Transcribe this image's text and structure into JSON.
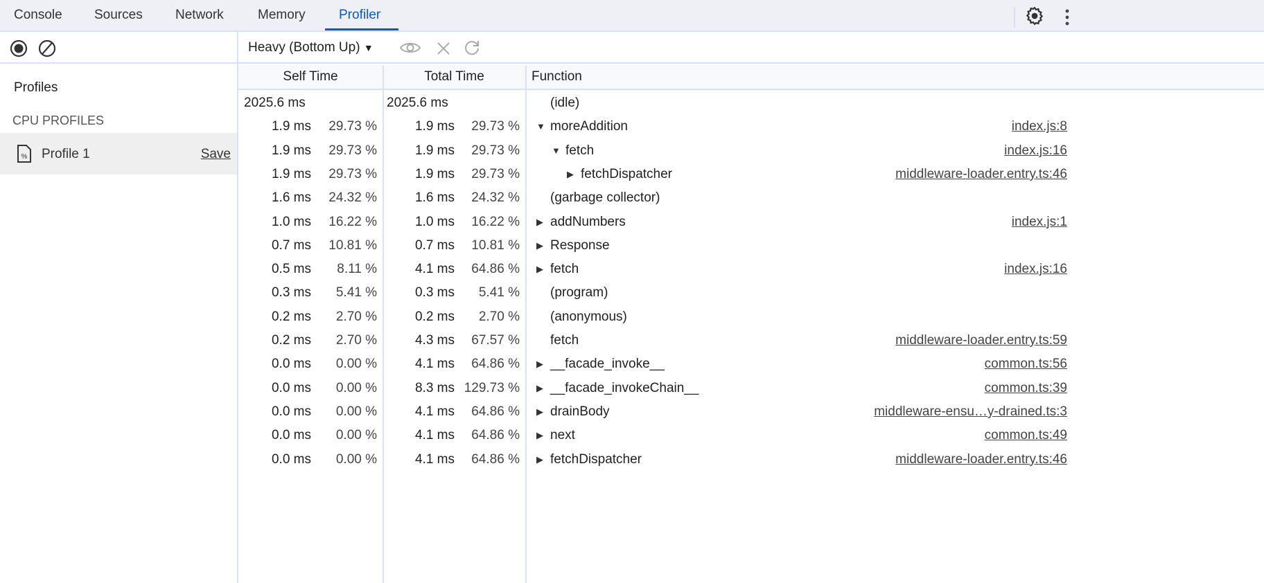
{
  "tabs": [
    {
      "label": "Console"
    },
    {
      "label": "Sources"
    },
    {
      "label": "Network"
    },
    {
      "label": "Memory"
    },
    {
      "label": "Profiler",
      "active": true
    }
  ],
  "accent": "#0b57d0",
  "toolbar": {
    "view_select": "Heavy (Bottom Up)",
    "icons": [
      "record-icon",
      "clear-icon",
      "focus-eye-icon",
      "exclude-x-icon",
      "restore-icon"
    ]
  },
  "sidebar": {
    "title": "Profiles",
    "section": "CPU PROFILES",
    "profile": {
      "label": "Profile 1",
      "save": "Save"
    }
  },
  "columns": {
    "self": "Self Time",
    "total": "Total Time",
    "function": "Function"
  },
  "rows": [
    {
      "self": "2025.6 ms",
      "self_pct": "",
      "total": "2025.6 ms",
      "total_pct": "",
      "name": "(idle)",
      "depth": 0,
      "arrow": "none",
      "url": ""
    },
    {
      "self": "1.9 ms",
      "self_pct": "29.73 %",
      "total": "1.9 ms",
      "total_pct": "29.73 %",
      "name": "moreAddition",
      "depth": 0,
      "arrow": "down",
      "url": "index.js:8"
    },
    {
      "self": "1.9 ms",
      "self_pct": "29.73 %",
      "total": "1.9 ms",
      "total_pct": "29.73 %",
      "name": "fetch",
      "depth": 1,
      "arrow": "down",
      "url": "index.js:16"
    },
    {
      "self": "1.9 ms",
      "self_pct": "29.73 %",
      "total": "1.9 ms",
      "total_pct": "29.73 %",
      "name": "fetchDispatcher",
      "depth": 2,
      "arrow": "right",
      "url": "middleware-loader.entry.ts:46"
    },
    {
      "self": "1.6 ms",
      "self_pct": "24.32 %",
      "total": "1.6 ms",
      "total_pct": "24.32 %",
      "name": "(garbage collector)",
      "depth": 0,
      "arrow": "none",
      "url": ""
    },
    {
      "self": "1.0 ms",
      "self_pct": "16.22 %",
      "total": "1.0 ms",
      "total_pct": "16.22 %",
      "name": "addNumbers",
      "depth": 0,
      "arrow": "right",
      "url": "index.js:1"
    },
    {
      "self": "0.7 ms",
      "self_pct": "10.81 %",
      "total": "0.7 ms",
      "total_pct": "10.81 %",
      "name": "Response",
      "depth": 0,
      "arrow": "right",
      "url": ""
    },
    {
      "self": "0.5 ms",
      "self_pct": "8.11 %",
      "total": "4.1 ms",
      "total_pct": "64.86 %",
      "name": "fetch",
      "depth": 0,
      "arrow": "right",
      "url": "index.js:16"
    },
    {
      "self": "0.3 ms",
      "self_pct": "5.41 %",
      "total": "0.3 ms",
      "total_pct": "5.41 %",
      "name": "(program)",
      "depth": 0,
      "arrow": "none",
      "url": ""
    },
    {
      "self": "0.2 ms",
      "self_pct": "2.70 %",
      "total": "0.2 ms",
      "total_pct": "2.70 %",
      "name": "(anonymous)",
      "depth": 0,
      "arrow": "none",
      "url": ""
    },
    {
      "self": "0.2 ms",
      "self_pct": "2.70 %",
      "total": "4.3 ms",
      "total_pct": "67.57 %",
      "name": "fetch",
      "depth": 0,
      "arrow": "none",
      "url": "middleware-loader.entry.ts:59"
    },
    {
      "self": "0.0 ms",
      "self_pct": "0.00 %",
      "total": "4.1 ms",
      "total_pct": "64.86 %",
      "name": "__facade_invoke__",
      "depth": 0,
      "arrow": "right",
      "url": "common.ts:56"
    },
    {
      "self": "0.0 ms",
      "self_pct": "0.00 %",
      "total": "8.3 ms",
      "total_pct": "129.73 %",
      "name": "__facade_invokeChain__",
      "depth": 0,
      "arrow": "right",
      "url": "common.ts:39"
    },
    {
      "self": "0.0 ms",
      "self_pct": "0.00 %",
      "total": "4.1 ms",
      "total_pct": "64.86 %",
      "name": "drainBody",
      "depth": 0,
      "arrow": "right",
      "url": "middleware-ensu…y-drained.ts:3"
    },
    {
      "self": "0.0 ms",
      "self_pct": "0.00 %",
      "total": "4.1 ms",
      "total_pct": "64.86 %",
      "name": "next",
      "depth": 0,
      "arrow": "right",
      "url": "common.ts:49"
    },
    {
      "self": "0.0 ms",
      "self_pct": "0.00 %",
      "total": "4.1 ms",
      "total_pct": "64.86 %",
      "name": "fetchDispatcher",
      "depth": 0,
      "arrow": "right",
      "url": "middleware-loader.entry.ts:46"
    }
  ]
}
